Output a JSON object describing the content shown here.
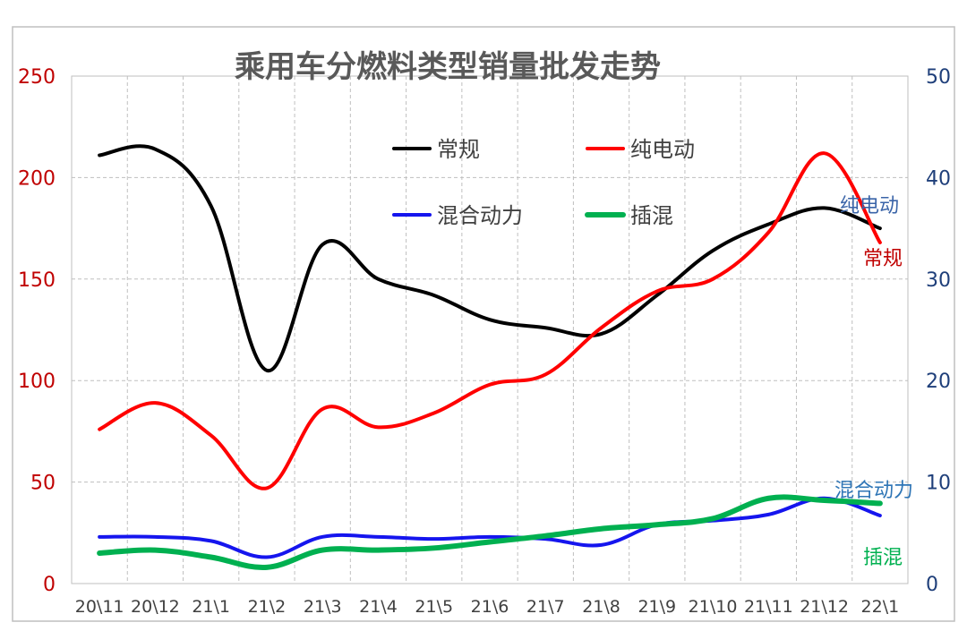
{
  "chart_data": {
    "type": "line",
    "title": "乘用车分燃料类型销量批发走势",
    "categories": [
      "20\\11",
      "20\\12",
      "21\\1",
      "21\\2",
      "21\\3",
      "21\\4",
      "21\\5",
      "21\\6",
      "21\\7",
      "21\\8",
      "21\\9",
      "21\\10",
      "21\\11",
      "21\\12",
      "22\\1"
    ],
    "left_axis": {
      "ylim": [
        0,
        250
      ],
      "ticks": [
        "0",
        "50",
        "100",
        "150",
        "200",
        "250"
      ],
      "color": "#c00000"
    },
    "right_axis": {
      "ylim": [
        0,
        50
      ],
      "ticks": [
        "0",
        "10",
        "20",
        "30",
        "40",
        "50"
      ],
      "color": "#1f3f7a"
    },
    "series": [
      {
        "name": "常规",
        "axis": "left",
        "color": "#000000",
        "values": [
          211,
          214,
          186,
          105,
          167,
          150,
          142,
          130,
          126,
          123,
          142,
          164,
          177,
          185,
          175
        ]
      },
      {
        "name": "纯电动",
        "axis": "left",
        "color": "#ff0000",
        "values": [
          76,
          89,
          73,
          47,
          86,
          77,
          84,
          98,
          103,
          126,
          144,
          150,
          173,
          212,
          168
        ]
      },
      {
        "name": "混合动力",
        "axis": "right",
        "color": "#1515ee",
        "values": [
          4.6,
          4.6,
          4.2,
          2.6,
          4.6,
          4.6,
          4.4,
          4.6,
          4.4,
          3.8,
          5.8,
          6.2,
          6.8,
          8.4,
          6.7
        ]
      },
      {
        "name": "插混",
        "axis": "right",
        "color": "#00b050",
        "values": [
          3.0,
          3.3,
          2.6,
          1.6,
          3.3,
          3.3,
          3.5,
          4.1,
          4.7,
          5.4,
          5.8,
          6.4,
          8.4,
          8.2,
          7.9
        ]
      }
    ],
    "legend": {
      "placement": "top-center",
      "columns": 2
    },
    "annotations": [
      {
        "text": "纯电动",
        "color": "#3a64a8"
      },
      {
        "text": "常规",
        "color": "#c00000"
      },
      {
        "text": "混合动力",
        "color": "#2e75b6"
      },
      {
        "text": "插混",
        "color": "#00b050"
      }
    ],
    "grid": true
  }
}
